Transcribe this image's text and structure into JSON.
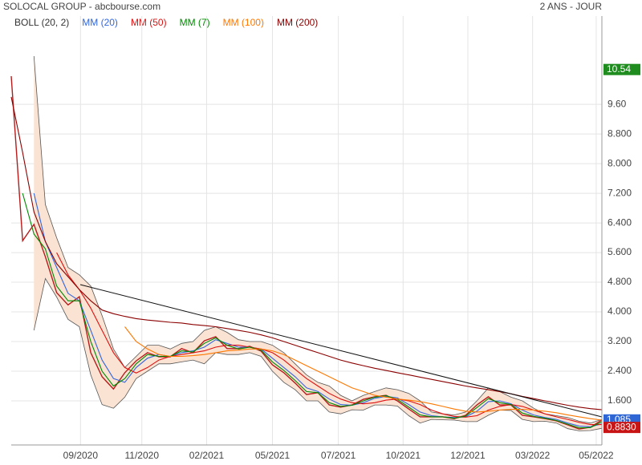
{
  "chart_data": {
    "type": "line",
    "title": "SOLOCAL GROUP - abcbourse.com",
    "subtitle": "2 ANS - JOUR",
    "x": [
      0,
      10,
      20,
      30,
      40,
      50,
      60,
      70,
      80,
      90,
      100,
      110,
      120,
      130,
      140,
      150,
      160,
      170,
      180,
      190,
      200,
      210,
      220,
      230,
      240,
      250,
      260,
      270,
      280,
      290,
      300,
      310,
      320,
      330,
      340,
      350,
      360,
      370,
      380,
      390,
      400,
      410,
      420,
      430,
      440,
      450,
      460,
      470,
      480,
      490,
      500,
      510,
      520
    ],
    "xlim": [
      0,
      520
    ],
    "xticks": [
      {
        "value": 61,
        "label": "09/2020"
      },
      {
        "value": 115,
        "label": "11/2020"
      },
      {
        "value": 172,
        "label": "02/2021"
      },
      {
        "value": 230,
        "label": "05/2021"
      },
      {
        "value": 288,
        "label": "07/2021"
      },
      {
        "value": 345,
        "label": "10/2021"
      },
      {
        "value": 402,
        "label": "12/2021"
      },
      {
        "value": 459,
        "label": "03/2022"
      },
      {
        "value": 515,
        "label": "05/2022"
      }
    ],
    "ylim": [
      0.41,
      11.55
    ],
    "yticks": [
      {
        "value": 1.6,
        "label": "1.600"
      },
      {
        "value": 2.4,
        "label": "2.400"
      },
      {
        "value": 3.2,
        "label": "3.200"
      },
      {
        "value": 4,
        "label": "4.000"
      },
      {
        "value": 4.8,
        "label": "4.800"
      },
      {
        "value": 5.6,
        "label": "5.600"
      },
      {
        "value": 6.4,
        "label": "6.400"
      },
      {
        "value": 7.2,
        "label": "7.200"
      },
      {
        "value": 8,
        "label": "8.000"
      },
      {
        "value": 8.8,
        "label": "8.800"
      },
      {
        "value": 9.6,
        "label": "9.60"
      }
    ],
    "grid": true,
    "bands": [
      {
        "name": "BOLL (20, 2)",
        "color": "#555555",
        "fill": "#fbe3d3",
        "upper": [
          null,
          null,
          10.9,
          6.9,
          6.0,
          5.2,
          5.0,
          4.7,
          3.9,
          3.0,
          2.5,
          2.8,
          3.1,
          3.1,
          3.0,
          3.15,
          3.2,
          3.5,
          3.6,
          3.45,
          3.25,
          3.2,
          3.2,
          3.1,
          2.9,
          2.6,
          2.3,
          2.1,
          2.0,
          1.75,
          1.6,
          1.75,
          1.85,
          1.95,
          1.9,
          1.8,
          1.6,
          1.3,
          1.25,
          1.22,
          1.3,
          1.6,
          1.95,
          1.85,
          1.7,
          1.6,
          1.4,
          1.25,
          1.2,
          1.15,
          1.05,
          1.0,
          1.1
        ],
        "lower": [
          null,
          null,
          3.5,
          4.9,
          4.4,
          3.8,
          3.6,
          2.3,
          1.5,
          1.4,
          1.7,
          2.2,
          2.4,
          2.6,
          2.6,
          2.65,
          2.7,
          2.6,
          2.9,
          2.85,
          2.85,
          2.9,
          2.8,
          2.4,
          2.1,
          1.9,
          1.6,
          1.6,
          1.3,
          1.25,
          1.36,
          1.35,
          1.49,
          1.49,
          1.46,
          1.2,
          1.0,
          1.1,
          1.09,
          1.08,
          1.04,
          1.04,
          1.21,
          1.35,
          1.34,
          1.1,
          1.04,
          1.05,
          1.0,
          0.85,
          0.79,
          0.8,
          0.86
        ]
      }
    ],
    "close": {
      "color": "#b71c1c",
      "values": [
        10.36,
        5.92,
        6.36,
        5.49,
        4.52,
        4.19,
        4.41,
        2.9,
        2.25,
        1.92,
        2.36,
        2.68,
        2.9,
        2.79,
        2.79,
        3.01,
        2.9,
        3.22,
        3.33,
        3.01,
        3.01,
        3.07,
        2.94,
        2.57,
        2.36,
        2.08,
        1.77,
        1.82,
        1.49,
        1.43,
        1.49,
        1.64,
        1.71,
        1.75,
        1.6,
        1.38,
        1.17,
        1.17,
        1.17,
        1.12,
        1.21,
        1.49,
        1.71,
        1.49,
        1.49,
        1.21,
        1.17,
        1.12,
        1.06,
        0.95,
        0.84,
        0.89,
        1.085
      ]
    },
    "series": [
      {
        "name": "MM (20)",
        "color": "#3366dd",
        "values": [
          null,
          null,
          7.2,
          5.9,
          5.2,
          4.5,
          4.3,
          3.5,
          2.7,
          2.2,
          2.1,
          2.5,
          2.75,
          2.85,
          2.8,
          2.9,
          2.95,
          3.05,
          3.25,
          3.15,
          3.05,
          3.05,
          3.0,
          2.75,
          2.5,
          2.25,
          1.95,
          1.85,
          1.65,
          1.5,
          1.48,
          1.55,
          1.67,
          1.72,
          1.68,
          1.5,
          1.3,
          1.2,
          1.17,
          1.15,
          1.17,
          1.32,
          1.58,
          1.6,
          1.52,
          1.35,
          1.22,
          1.15,
          1.1,
          1.0,
          0.92,
          0.9,
          0.98
        ]
      },
      {
        "name": "MM (50)",
        "color": "#dd1111",
        "values": [
          null,
          null,
          null,
          null,
          5.6,
          5.0,
          4.6,
          4.1,
          3.5,
          2.9,
          2.5,
          2.35,
          2.5,
          2.7,
          2.8,
          2.85,
          2.9,
          2.95,
          3.05,
          3.1,
          3.1,
          3.05,
          3.0,
          2.9,
          2.7,
          2.45,
          2.2,
          2.0,
          1.8,
          1.65,
          1.55,
          1.52,
          1.55,
          1.62,
          1.65,
          1.6,
          1.5,
          1.35,
          1.25,
          1.18,
          1.16,
          1.2,
          1.35,
          1.45,
          1.5,
          1.45,
          1.35,
          1.25,
          1.17,
          1.1,
          1.02,
          0.96,
          0.96
        ]
      },
      {
        "name": "MM (7)",
        "color": "#008800",
        "values": [
          null,
          7.2,
          6.1,
          5.7,
          4.7,
          4.3,
          4.3,
          3.2,
          2.4,
          2.0,
          2.2,
          2.6,
          2.85,
          2.8,
          2.8,
          2.95,
          2.92,
          3.15,
          3.3,
          3.1,
          3.0,
          3.05,
          2.97,
          2.65,
          2.42,
          2.15,
          1.85,
          1.82,
          1.55,
          1.45,
          1.48,
          1.6,
          1.7,
          1.74,
          1.64,
          1.43,
          1.22,
          1.17,
          1.17,
          1.13,
          1.19,
          1.42,
          1.66,
          1.55,
          1.5,
          1.27,
          1.18,
          1.13,
          1.07,
          0.97,
          0.87,
          0.88,
          1.04
        ]
      },
      {
        "name": "MM (100)",
        "color": "#ff7700",
        "values": [
          null,
          null,
          null,
          null,
          null,
          null,
          null,
          null,
          null,
          null,
          3.6,
          3.2,
          3.0,
          2.85,
          2.8,
          2.8,
          2.82,
          2.85,
          2.9,
          2.95,
          2.97,
          3.0,
          3.0,
          2.95,
          2.85,
          2.7,
          2.55,
          2.4,
          2.25,
          2.1,
          1.95,
          1.85,
          1.75,
          1.7,
          1.65,
          1.62,
          1.58,
          1.52,
          1.45,
          1.38,
          1.32,
          1.3,
          1.32,
          1.35,
          1.37,
          1.37,
          1.35,
          1.32,
          1.28,
          1.22,
          1.17,
          1.12,
          1.08
        ]
      },
      {
        "name": "MM (200)",
        "color": "#8b0000",
        "values": [
          9.8,
          8.3,
          6.7,
          5.9,
          5.3,
          4.95,
          4.6,
          4.3,
          4.05,
          3.95,
          3.88,
          3.82,
          3.78,
          3.75,
          3.72,
          3.7,
          3.66,
          3.63,
          3.6,
          3.55,
          3.5,
          3.45,
          3.38,
          3.3,
          3.2,
          3.1,
          3.0,
          2.9,
          2.8,
          2.7,
          2.62,
          2.55,
          2.48,
          2.42,
          2.36,
          2.3,
          2.24,
          2.18,
          2.12,
          2.06,
          2.0,
          1.95,
          1.9,
          1.85,
          1.79,
          1.72,
          1.66,
          1.6,
          1.54,
          1.48,
          1.43,
          1.39,
          1.36
        ]
      }
    ],
    "price_labels": [
      {
        "value": 10.54,
        "label": "10.54",
        "color": "#1e8c1e"
      },
      {
        "value": 1.085,
        "label": "1.085",
        "color": "#2f66d6"
      },
      {
        "value": 0.883,
        "label": "0.8830",
        "color": "#c81414"
      }
    ]
  }
}
